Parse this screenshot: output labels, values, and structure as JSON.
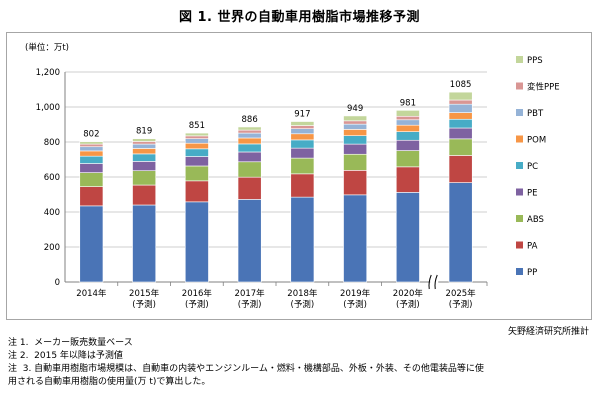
{
  "title": "図 1.  世界の自動車用樹脂市場推移予測",
  "source": "矢野経済研究所推計",
  "notes": [
    "注 1.  メーカー販売数量ベース",
    "注 2.  2015 年以降は予測値",
    "注  3. 自動車用樹脂市場規模は、自動車の内装やエンジンルーム・燃料・機構部品、外板・外装、その他電装品等に使",
    "用される自動車用樹脂の使用量(万 t)で算出した。"
  ],
  "chart_data": {
    "type": "bar",
    "stacked": true,
    "unit_label": "(単位：万t)",
    "categories": [
      [
        "2014年"
      ],
      [
        "2015年",
        "(予測)"
      ],
      [
        "2016年",
        "(予測)"
      ],
      [
        "2017年",
        "(予測)"
      ],
      [
        "2018年",
        "(予測)"
      ],
      [
        "2019年",
        "(予測)"
      ],
      [
        "2020年",
        "(予測)"
      ],
      [
        "2025年",
        "(予測)"
      ]
    ],
    "totals": [
      802,
      819,
      851,
      886,
      917,
      949,
      981,
      1085
    ],
    "ylim": [
      0,
      1200
    ],
    "yticks": [
      "0",
      "200",
      "400",
      "600",
      "800",
      "1,000",
      "1,200"
    ],
    "ytick_values": [
      0,
      200,
      400,
      600,
      800,
      1000,
      1200
    ],
    "axis_break_after_index": 6,
    "grid": true,
    "legend_position": "right",
    "series": [
      {
        "name": "PP",
        "color": "#4a74b6",
        "values": [
          435,
          440,
          458,
          472,
          485,
          498,
          512,
          568
        ]
      },
      {
        "name": "PA",
        "color": "#bf4643",
        "values": [
          110,
          114,
          120,
          127,
          133,
          140,
          146,
          155
        ]
      },
      {
        "name": "ABS",
        "color": "#99b958",
        "values": [
          80,
          82,
          85,
          88,
          90,
          92,
          93,
          95
        ]
      },
      {
        "name": "PE",
        "color": "#7e62a1",
        "values": [
          52,
          53,
          54,
          56,
          57,
          58,
          59,
          62
        ]
      },
      {
        "name": "PC",
        "color": "#47acc6",
        "values": [
          42,
          43,
          44,
          46,
          47,
          48,
          49,
          50
        ]
      },
      {
        "name": "POM",
        "color": "#f79646",
        "values": [
          30,
          31,
          32,
          34,
          35,
          36,
          37,
          38
        ]
      },
      {
        "name": "PBT",
        "color": "#95b3d7",
        "values": [
          24,
          25,
          26,
          28,
          29,
          30,
          31,
          48
        ]
      },
      {
        "name": "変性PPE",
        "color": "#d99694",
        "values": [
          15,
          15,
          16,
          17,
          18,
          19,
          20,
          24
        ]
      },
      {
        "name": "PPS",
        "color": "#c3d69b",
        "values": [
          14,
          16,
          16,
          18,
          23,
          28,
          34,
          45
        ]
      }
    ]
  }
}
